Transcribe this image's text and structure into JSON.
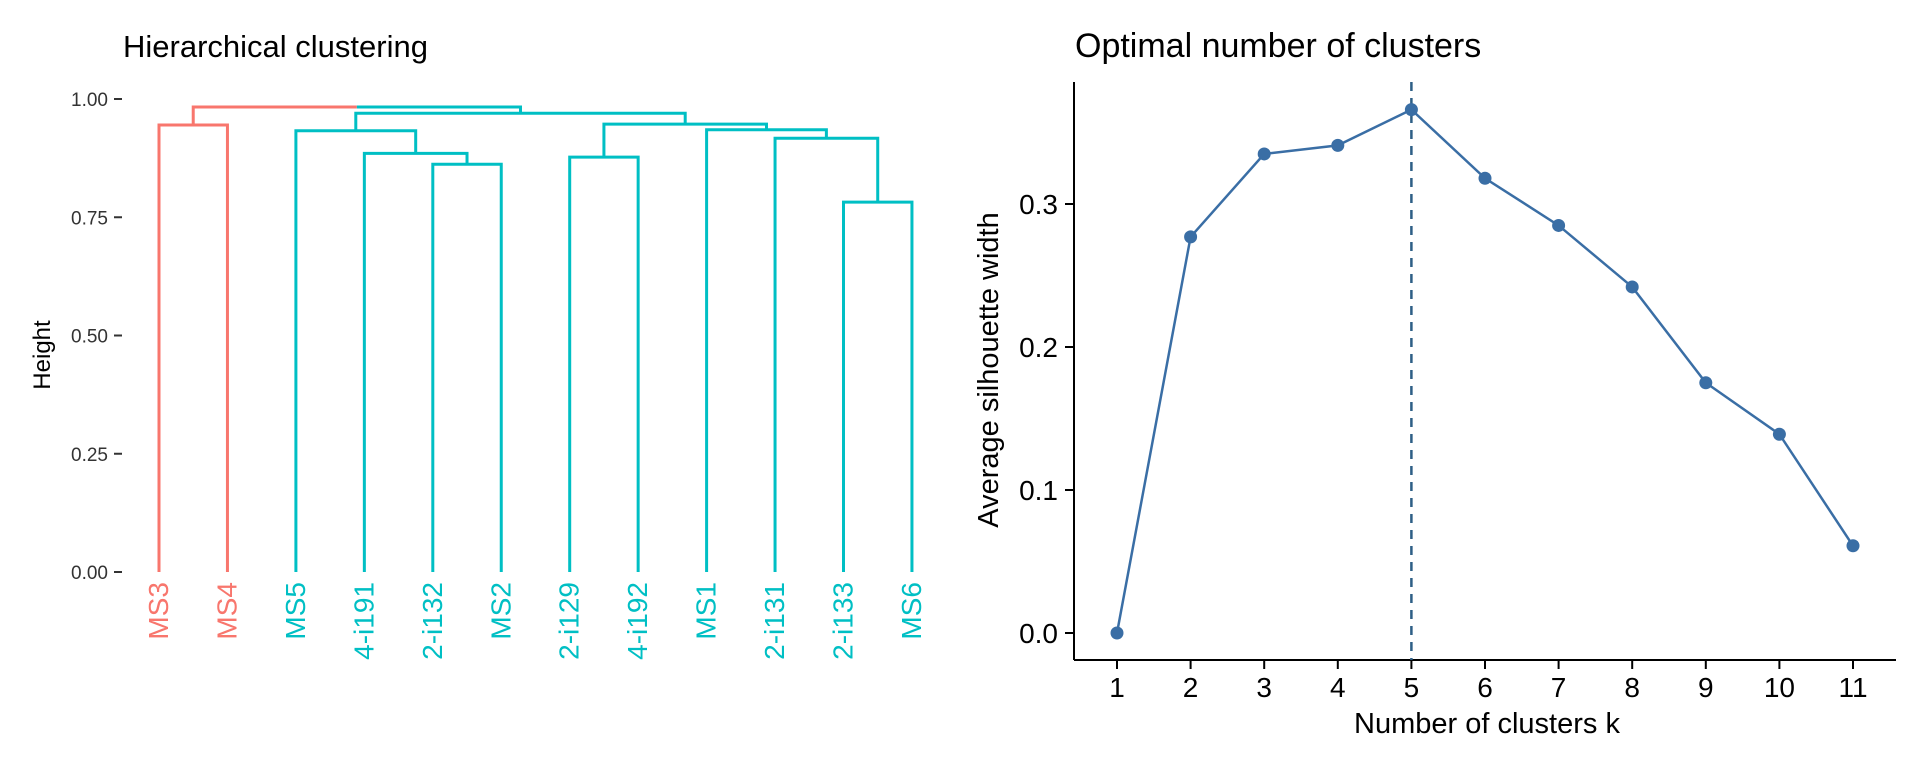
{
  "chart_data": [
    {
      "type": "dendrogram",
      "title": "Hierarchical clustering",
      "ylabel": "Height",
      "ylim": [
        0,
        1.0
      ],
      "y_ticks": [
        "0.00",
        "0.25",
        "0.50",
        "0.75",
        "1.00"
      ],
      "y_tick_values": [
        0,
        0.25,
        0.5,
        0.75,
        1.0
      ],
      "clusters": [
        {
          "name": "cluster-1",
          "color": "#F8766D"
        },
        {
          "name": "cluster-2",
          "color": "#00BFC4"
        }
      ],
      "leaves": [
        {
          "label": "MS3",
          "cluster": 0
        },
        {
          "label": "MS4",
          "cluster": 0
        },
        {
          "label": "MS5",
          "cluster": 1
        },
        {
          "label": "4-i191",
          "cluster": 1
        },
        {
          "label": "2-i132",
          "cluster": 1
        },
        {
          "label": "MS2",
          "cluster": 1
        },
        {
          "label": "2-i129",
          "cluster": 1
        },
        {
          "label": "4-i192",
          "cluster": 1
        },
        {
          "label": "MS1",
          "cluster": 1
        },
        {
          "label": "2-i131",
          "cluster": 1
        },
        {
          "label": "2-i133",
          "cluster": 1
        },
        {
          "label": "MS6",
          "cluster": 1
        }
      ],
      "merges": [
        {
          "left": "L0",
          "right": "L1",
          "height": 0.945,
          "cluster": 0
        },
        {
          "left": "L4",
          "right": "L5",
          "height": 0.862,
          "cluster": 1
        },
        {
          "left": "L3",
          "right": "M1",
          "height": 0.885,
          "cluster": 1
        },
        {
          "left": "L2",
          "right": "M2",
          "height": 0.933,
          "cluster": 1
        },
        {
          "left": "L6",
          "right": "L7",
          "height": 0.877,
          "cluster": 1
        },
        {
          "left": "L10",
          "right": "L11",
          "height": 0.782,
          "cluster": 1
        },
        {
          "left": "L9",
          "right": "M5",
          "height": 0.917,
          "cluster": 1
        },
        {
          "left": "L8",
          "right": "M6",
          "height": 0.935,
          "cluster": 1
        },
        {
          "left": "M4",
          "right": "M7",
          "height": 0.947,
          "cluster": 1
        },
        {
          "left": "M3",
          "right": "M8",
          "height": 0.97,
          "cluster": 1
        },
        {
          "left": "M0",
          "right": "M9",
          "height": 0.983,
          "cluster": -1
        }
      ]
    },
    {
      "type": "line",
      "title": "Optimal number of clusters",
      "xlabel": "Number of clusters k",
      "ylabel": "Average silhouette width",
      "x": [
        1,
        2,
        3,
        4,
        5,
        6,
        7,
        8,
        9,
        10,
        11
      ],
      "values": [
        0.0,
        0.277,
        0.335,
        0.341,
        0.366,
        0.318,
        0.285,
        0.242,
        0.175,
        0.139,
        0.061
      ],
      "y_ticks": [
        "0.0",
        "0.1",
        "0.2",
        "0.3"
      ],
      "y_tick_values": [
        0,
        0.1,
        0.2,
        0.3
      ],
      "ylim": [
        -0.015,
        0.385
      ],
      "optimal_k": 5,
      "color": "#3A6EA5",
      "vline_color": "#2E5F86",
      "grid": false
    }
  ]
}
